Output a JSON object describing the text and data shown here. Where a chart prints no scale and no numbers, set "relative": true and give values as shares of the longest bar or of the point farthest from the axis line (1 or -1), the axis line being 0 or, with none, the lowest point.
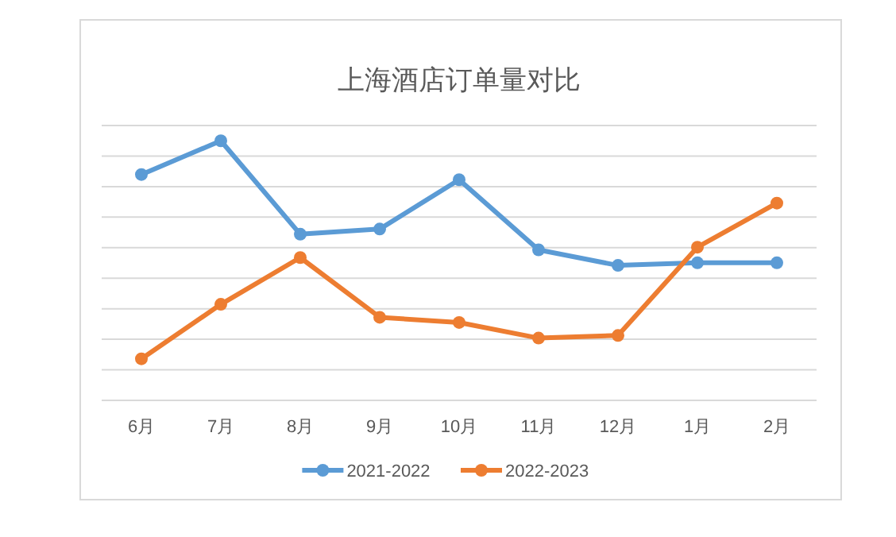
{
  "chart_data": {
    "type": "line",
    "title": "上海酒店订单量对比",
    "relative": true,
    "grid": "y",
    "legend": "bottom",
    "marker": "circle",
    "line_style": "solid",
    "categories": [
      "6月",
      "7月",
      "8月",
      "9月",
      "10月",
      "11月",
      "12月",
      "1月",
      "2月"
    ],
    "series": [
      {
        "name": "2021-2022",
        "color": "#5b9bd5",
        "values": [
          0.87,
          1,
          0.64,
          0.66,
          0.85,
          0.58,
          0.52,
          0.53,
          0.53
        ]
      },
      {
        "name": "2022-2023",
        "color": "#ed7d31",
        "values": [
          0.16,
          0.37,
          0.55,
          0.32,
          0.3,
          0.24,
          0.25,
          0.59,
          0.76
        ]
      }
    ]
  }
}
